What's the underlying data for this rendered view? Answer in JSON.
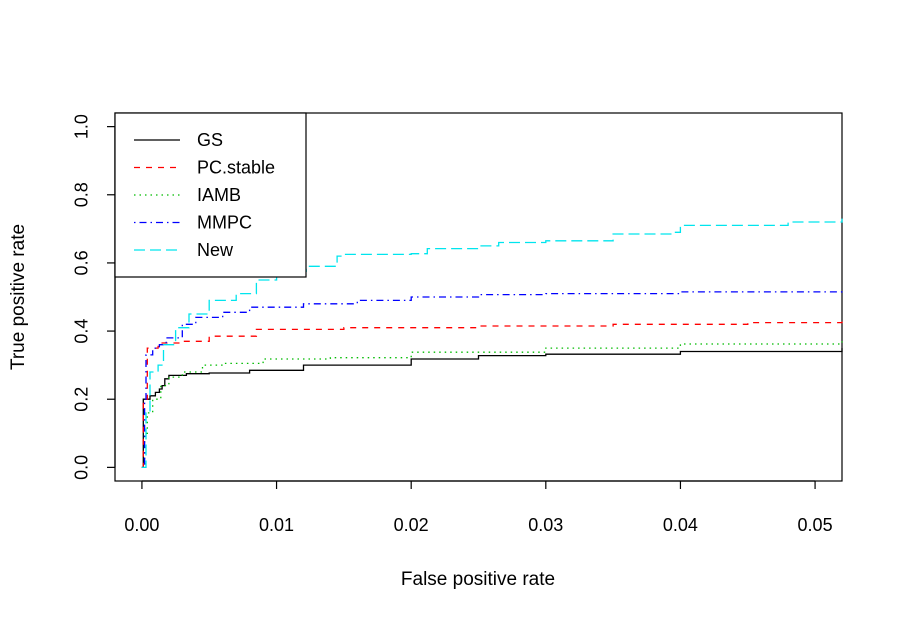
{
  "chart_data": {
    "type": "line",
    "title": "",
    "xlabel": "False positive rate",
    "ylabel": "True positive rate",
    "xlim": [
      -0.002,
      0.052
    ],
    "ylim": [
      -0.04,
      1.04
    ],
    "x_ticks": [
      0.0,
      0.01,
      0.02,
      0.03,
      0.04,
      0.05
    ],
    "x_tick_labels": [
      "0.00",
      "0.01",
      "0.02",
      "0.03",
      "0.04",
      "0.05"
    ],
    "y_ticks": [
      0.0,
      0.2,
      0.4,
      0.6,
      0.8,
      1.0
    ],
    "y_tick_labels": [
      "0.0",
      "0.2",
      "0.4",
      "0.6",
      "0.8",
      "1.0"
    ],
    "grid": false,
    "legend_position": "top-left",
    "series": [
      {
        "name": "GS",
        "color": "#000000",
        "dash": "solid",
        "points": [
          [
            0,
            0
          ],
          [
            0.0001,
            0.2
          ],
          [
            0.0005,
            0.2
          ],
          [
            0.0006,
            0.21
          ],
          [
            0.0009,
            0.21
          ],
          [
            0.001,
            0.22
          ],
          [
            0.0013,
            0.23
          ],
          [
            0.0015,
            0.24
          ],
          [
            0.0017,
            0.26
          ],
          [
            0.002,
            0.27
          ],
          [
            0.003,
            0.27
          ],
          [
            0.0033,
            0.275
          ],
          [
            0.005,
            0.277
          ],
          [
            0.008,
            0.285
          ],
          [
            0.012,
            0.3
          ],
          [
            0.02,
            0.318
          ],
          [
            0.025,
            0.328
          ],
          [
            0.03,
            0.332
          ],
          [
            0.04,
            0.34
          ],
          [
            0.052,
            0.35
          ]
        ]
      },
      {
        "name": "PC.stable",
        "color": "#ff0000",
        "dash": "dashed",
        "points": [
          [
            0,
            0
          ],
          [
            0.0001,
            0.2
          ],
          [
            0.0004,
            0.35
          ],
          [
            0.0012,
            0.355
          ],
          [
            0.0015,
            0.365
          ],
          [
            0.003,
            0.37
          ],
          [
            0.005,
            0.385
          ],
          [
            0.0085,
            0.405
          ],
          [
            0.015,
            0.41
          ],
          [
            0.025,
            0.415
          ],
          [
            0.035,
            0.42
          ],
          [
            0.045,
            0.425
          ],
          [
            0.052,
            0.432
          ]
        ]
      },
      {
        "name": "IAMB",
        "color": "#00bb00",
        "dash": "dotted",
        "points": [
          [
            0,
            0
          ],
          [
            0.0002,
            0.1
          ],
          [
            0.0004,
            0.16
          ],
          [
            0.0008,
            0.2
          ],
          [
            0.0014,
            0.24
          ],
          [
            0.002,
            0.265
          ],
          [
            0.003,
            0.28
          ],
          [
            0.0045,
            0.3
          ],
          [
            0.006,
            0.305
          ],
          [
            0.009,
            0.318
          ],
          [
            0.014,
            0.322
          ],
          [
            0.02,
            0.338
          ],
          [
            0.03,
            0.35
          ],
          [
            0.04,
            0.362
          ],
          [
            0.052,
            0.37
          ]
        ]
      },
      {
        "name": "MMPC",
        "color": "#0000ff",
        "dash": "dashdot",
        "points": [
          [
            0,
            0
          ],
          [
            0.0002,
            0.2
          ],
          [
            0.0003,
            0.33
          ],
          [
            0.0008,
            0.35
          ],
          [
            0.0013,
            0.36
          ],
          [
            0.0018,
            0.38
          ],
          [
            0.003,
            0.42
          ],
          [
            0.004,
            0.44
          ],
          [
            0.006,
            0.455
          ],
          [
            0.008,
            0.47
          ],
          [
            0.012,
            0.48
          ],
          [
            0.016,
            0.49
          ],
          [
            0.02,
            0.5
          ],
          [
            0.025,
            0.507
          ],
          [
            0.03,
            0.51
          ],
          [
            0.04,
            0.515
          ],
          [
            0.052,
            0.52
          ]
        ]
      },
      {
        "name": "New",
        "color": "#00e5ee",
        "dash": "longdash",
        "points": [
          [
            0,
            0
          ],
          [
            0.0003,
            0.16
          ],
          [
            0.0006,
            0.28
          ],
          [
            0.0012,
            0.3
          ],
          [
            0.0016,
            0.36
          ],
          [
            0.0025,
            0.41
          ],
          [
            0.0035,
            0.45
          ],
          [
            0.005,
            0.49
          ],
          [
            0.007,
            0.51
          ],
          [
            0.0085,
            0.55
          ],
          [
            0.01,
            0.575
          ],
          [
            0.0122,
            0.59
          ],
          [
            0.0145,
            0.62
          ],
          [
            0.015,
            0.625
          ],
          [
            0.02,
            0.627
          ],
          [
            0.0212,
            0.642
          ],
          [
            0.025,
            0.65
          ],
          [
            0.0265,
            0.66
          ],
          [
            0.03,
            0.665
          ],
          [
            0.035,
            0.685
          ],
          [
            0.0395,
            0.69
          ],
          [
            0.04,
            0.71
          ],
          [
            0.0445,
            0.71
          ],
          [
            0.048,
            0.72
          ],
          [
            0.052,
            0.73
          ]
        ]
      }
    ]
  }
}
